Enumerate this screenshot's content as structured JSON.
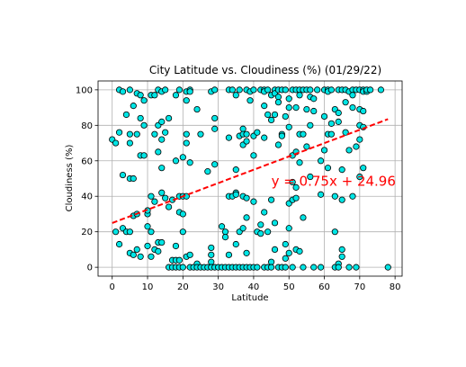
{
  "chart_data": {
    "type": "scatter",
    "title": "City Latitude vs. Cloudiness (%) (01/29/22)",
    "xlabel": "Latitude",
    "ylabel": "Cloudiness (%)",
    "xlim": [
      -4,
      82
    ],
    "ylim": [
      -5,
      105
    ],
    "xticks": [
      0,
      10,
      20,
      30,
      40,
      50,
      60,
      70,
      80
    ],
    "yticks": [
      0,
      20,
      40,
      60,
      80,
      100
    ],
    "grid": true,
    "marker_color": "#00e5e5",
    "marker_edge": "#000000",
    "regression": {
      "slope": 0.75,
      "intercept": 24.96,
      "x_range": [
        0,
        78
      ],
      "label": "y = 0.75x + 24.96",
      "label_at": [
        45,
        46
      ],
      "color": "#ff0000"
    },
    "points": [
      [
        0,
        72
      ],
      [
        1,
        70
      ],
      [
        1,
        20
      ],
      [
        2,
        100
      ],
      [
        2,
        76
      ],
      [
        2,
        13
      ],
      [
        3,
        99
      ],
      [
        3,
        52
      ],
      [
        3,
        22
      ],
      [
        4,
        86
      ],
      [
        4,
        20
      ],
      [
        5,
        100
      ],
      [
        5,
        75
      ],
      [
        5,
        70
      ],
      [
        5,
        50
      ],
      [
        5,
        20
      ],
      [
        5,
        8
      ],
      [
        6,
        91
      ],
      [
        6,
        50
      ],
      [
        6,
        7
      ],
      [
        6,
        29
      ],
      [
        7,
        98
      ],
      [
        7,
        75
      ],
      [
        7,
        10
      ],
      [
        7,
        30
      ],
      [
        8,
        97
      ],
      [
        8,
        63
      ],
      [
        8,
        84
      ],
      [
        8,
        6
      ],
      [
        9,
        94
      ],
      [
        9,
        80
      ],
      [
        9,
        63
      ],
      [
        10,
        12
      ],
      [
        10,
        30
      ],
      [
        10,
        32
      ],
      [
        10,
        23
      ],
      [
        11,
        97
      ],
      [
        11,
        40
      ],
      [
        11,
        20
      ],
      [
        11,
        6
      ],
      [
        12,
        75
      ],
      [
        12,
        37
      ],
      [
        12,
        10
      ],
      [
        12,
        97
      ],
      [
        13,
        100
      ],
      [
        13,
        80
      ],
      [
        13,
        65
      ],
      [
        13,
        14
      ],
      [
        13,
        9
      ],
      [
        14,
        99
      ],
      [
        14,
        82
      ],
      [
        14,
        72
      ],
      [
        14,
        56
      ],
      [
        14,
        42
      ],
      [
        14,
        14
      ],
      [
        15,
        100
      ],
      [
        15,
        76
      ],
      [
        15,
        39
      ],
      [
        16,
        84
      ],
      [
        16,
        34
      ],
      [
        16,
        0
      ],
      [
        17,
        0
      ],
      [
        17,
        4
      ],
      [
        17,
        38
      ],
      [
        18,
        97
      ],
      [
        18,
        60
      ],
      [
        18,
        12
      ],
      [
        18,
        4
      ],
      [
        18,
        0
      ],
      [
        19,
        100
      ],
      [
        19,
        40
      ],
      [
        19,
        31
      ],
      [
        19,
        4
      ],
      [
        19,
        0
      ],
      [
        20,
        62
      ],
      [
        20,
        30
      ],
      [
        20,
        20
      ],
      [
        20,
        0
      ],
      [
        20,
        40
      ],
      [
        21,
        99
      ],
      [
        21,
        94
      ],
      [
        21,
        75
      ],
      [
        21,
        70
      ],
      [
        21,
        40
      ],
      [
        21,
        6
      ],
      [
        22,
        100
      ],
      [
        22,
        99
      ],
      [
        22,
        59
      ],
      [
        22,
        7
      ],
      [
        22,
        0
      ],
      [
        23,
        0
      ],
      [
        24,
        89
      ],
      [
        24,
        2
      ],
      [
        24,
        0
      ],
      [
        25,
        75
      ],
      [
        25,
        0
      ],
      [
        26,
        0
      ],
      [
        27,
        54
      ],
      [
        27,
        0
      ],
      [
        28,
        99
      ],
      [
        28,
        11
      ],
      [
        28,
        7
      ],
      [
        28,
        3
      ],
      [
        28,
        0
      ],
      [
        29,
        100
      ],
      [
        29,
        84
      ],
      [
        29,
        78
      ],
      [
        29,
        58
      ],
      [
        29,
        0
      ],
      [
        30,
        0
      ],
      [
        31,
        23
      ],
      [
        31,
        0
      ],
      [
        32,
        20
      ],
      [
        32,
        17
      ],
      [
        32,
        0
      ],
      [
        33,
        100
      ],
      [
        33,
        73
      ],
      [
        33,
        40
      ],
      [
        33,
        7
      ],
      [
        33,
        0
      ],
      [
        34,
        100
      ],
      [
        34,
        40
      ],
      [
        34,
        0
      ],
      [
        35,
        97
      ],
      [
        35,
        55
      ],
      [
        35,
        42
      ],
      [
        35,
        41
      ],
      [
        35,
        13
      ],
      [
        35,
        0
      ],
      [
        36,
        100
      ],
      [
        36,
        74
      ],
      [
        36,
        20
      ],
      [
        36,
        0
      ],
      [
        37,
        78
      ],
      [
        37,
        75
      ],
      [
        37,
        69
      ],
      [
        37,
        40
      ],
      [
        37,
        22
      ],
      [
        37,
        0
      ],
      [
        38,
        100
      ],
      [
        38,
        75
      ],
      [
        38,
        71
      ],
      [
        38,
        39
      ],
      [
        38,
        28
      ],
      [
        38,
        8
      ],
      [
        38,
        0
      ],
      [
        39,
        99
      ],
      [
        39,
        94
      ],
      [
        39,
        0
      ],
      [
        40,
        100
      ],
      [
        40,
        74
      ],
      [
        40,
        63
      ],
      [
        40,
        37
      ],
      [
        40,
        0
      ],
      [
        41,
        76
      ],
      [
        41,
        20
      ],
      [
        41,
        0
      ],
      [
        42,
        100
      ],
      [
        42,
        24
      ],
      [
        42,
        19
      ],
      [
        43,
        100
      ],
      [
        43,
        99
      ],
      [
        43,
        91
      ],
      [
        43,
        73
      ],
      [
        43,
        31
      ],
      [
        43,
        0
      ],
      [
        44,
        100
      ],
      [
        44,
        86
      ],
      [
        44,
        20
      ],
      [
        44,
        0
      ],
      [
        45,
        97
      ],
      [
        45,
        83
      ],
      [
        45,
        38
      ],
      [
        45,
        3
      ],
      [
        45,
        0
      ],
      [
        46,
        100
      ],
      [
        46,
        98
      ],
      [
        46,
        86
      ],
      [
        46,
        10
      ],
      [
        46,
        25
      ],
      [
        47,
        100
      ],
      [
        47,
        96
      ],
      [
        47,
        93
      ],
      [
        47,
        69
      ],
      [
        47,
        0
      ],
      [
        48,
        100
      ],
      [
        48,
        75
      ],
      [
        48,
        74
      ],
      [
        48,
        0
      ],
      [
        49,
        100
      ],
      [
        49,
        85
      ],
      [
        49,
        13
      ],
      [
        49,
        5
      ],
      [
        49,
        0
      ],
      [
        50,
        95
      ],
      [
        50,
        90
      ],
      [
        50,
        79
      ],
      [
        50,
        36
      ],
      [
        50,
        22
      ],
      [
        50,
        8
      ],
      [
        51,
        100
      ],
      [
        51,
        63
      ],
      [
        51,
        48
      ],
      [
        51,
        38
      ],
      [
        51,
        0
      ],
      [
        52,
        100
      ],
      [
        52,
        90
      ],
      [
        52,
        65
      ],
      [
        52,
        45
      ],
      [
        52,
        39
      ],
      [
        52,
        10
      ],
      [
        53,
        100
      ],
      [
        53,
        97
      ],
      [
        53,
        75
      ],
      [
        53,
        59
      ],
      [
        53,
        9
      ],
      [
        54,
        100
      ],
      [
        54,
        75
      ],
      [
        54,
        28
      ],
      [
        54,
        0
      ],
      [
        55,
        100
      ],
      [
        55,
        89
      ],
      [
        55,
        68
      ],
      [
        56,
        100
      ],
      [
        56,
        96
      ],
      [
        56,
        80
      ],
      [
        56,
        51
      ],
      [
        57,
        95
      ],
      [
        57,
        88
      ],
      [
        57,
        0
      ],
      [
        58,
        100
      ],
      [
        59,
        60
      ],
      [
        59,
        41
      ],
      [
        59,
        0
      ],
      [
        60,
        100
      ],
      [
        60,
        85
      ],
      [
        60,
        66
      ],
      [
        61,
        100
      ],
      [
        61,
        99
      ],
      [
        61,
        75
      ],
      [
        61,
        56
      ],
      [
        62,
        100
      ],
      [
        62,
        81
      ],
      [
        62,
        75
      ],
      [
        63,
        89
      ],
      [
        63,
        40
      ],
      [
        63,
        20
      ],
      [
        63,
        0
      ],
      [
        64,
        100
      ],
      [
        64,
        87
      ],
      [
        64,
        82
      ],
      [
        64,
        2
      ],
      [
        64,
        0
      ],
      [
        65,
        100
      ],
      [
        65,
        55
      ],
      [
        65,
        38
      ],
      [
        65,
        10
      ],
      [
        65,
        6
      ],
      [
        66,
        100
      ],
      [
        66,
        93
      ],
      [
        66,
        76
      ],
      [
        67,
        99
      ],
      [
        67,
        66
      ],
      [
        67,
        0
      ],
      [
        68,
        100
      ],
      [
        68,
        97
      ],
      [
        68,
        90
      ],
      [
        68,
        40
      ],
      [
        69,
        100
      ],
      [
        69,
        68
      ],
      [
        69,
        0
      ],
      [
        70,
        100
      ],
      [
        70,
        89
      ],
      [
        70,
        80
      ],
      [
        70,
        72
      ],
      [
        70,
        51
      ],
      [
        71,
        100
      ],
      [
        71,
        99
      ],
      [
        71,
        88
      ],
      [
        71,
        79
      ],
      [
        71,
        56
      ],
      [
        72,
        99
      ],
      [
        72,
        100
      ],
      [
        73,
        100
      ],
      [
        76,
        100
      ],
      [
        78,
        0
      ]
    ]
  }
}
